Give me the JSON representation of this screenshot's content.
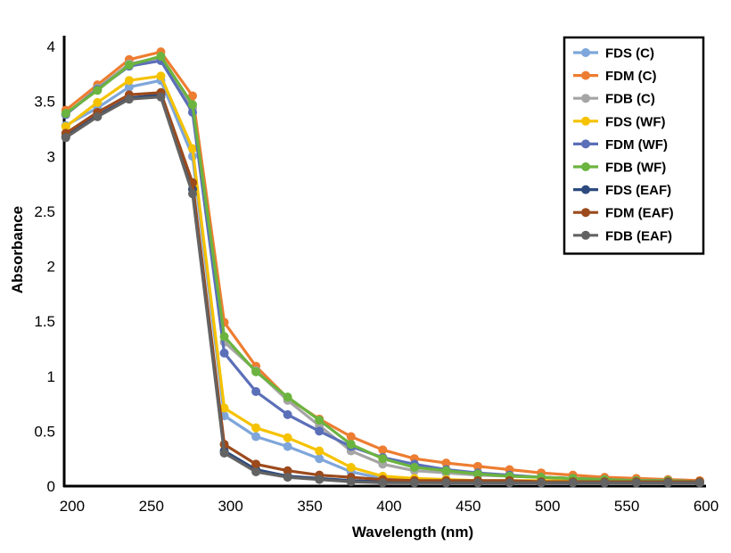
{
  "chart_data": {
    "type": "line",
    "title": "",
    "xlabel": "Wavelength (nm)",
    "ylabel": "Absorbance",
    "xlim": [
      195,
      600
    ],
    "ylim": [
      0,
      4
    ],
    "xticks": [
      200,
      250,
      300,
      350,
      400,
      450,
      500,
      550,
      600
    ],
    "yticks": [
      0,
      0.5,
      1,
      1.5,
      2,
      2.5,
      3,
      3.5,
      4
    ],
    "ytick_labels": [
      "0",
      "0.5",
      "1",
      "1.5",
      "2",
      "2.5",
      "3",
      "3.5",
      "4"
    ],
    "grid": false,
    "legend_position": "top-right",
    "x": [
      196,
      216,
      236,
      256,
      276,
      296,
      316,
      336,
      356,
      376,
      396,
      416,
      436,
      456,
      476,
      496,
      516,
      536,
      556,
      576,
      596
    ],
    "series": [
      {
        "name": "FDS (C)",
        "color": "#7ea6da",
        "values": [
          3.28,
          3.44,
          3.63,
          3.69,
          3.0,
          0.64,
          0.45,
          0.36,
          0.25,
          0.13,
          0.07,
          0.05,
          0.05,
          0.04,
          0.04,
          0.04,
          0.04,
          0.04,
          0.04,
          0.04,
          0.04
        ]
      },
      {
        "name": "FDM (C)",
        "color": "#ed7d31",
        "values": [
          3.42,
          3.65,
          3.88,
          3.95,
          3.55,
          1.49,
          1.09,
          0.8,
          0.61,
          0.45,
          0.33,
          0.25,
          0.21,
          0.18,
          0.15,
          0.12,
          0.1,
          0.08,
          0.07,
          0.06,
          0.05
        ]
      },
      {
        "name": "FDB (C)",
        "color": "#a5a5a5",
        "values": [
          3.38,
          3.62,
          3.84,
          3.9,
          3.44,
          1.31,
          1.05,
          0.78,
          0.55,
          0.32,
          0.2,
          0.14,
          0.12,
          0.1,
          0.09,
          0.08,
          0.07,
          0.06,
          0.05,
          0.05,
          0.04
        ]
      },
      {
        "name": "FDS (WF)",
        "color": "#f5c200",
        "values": [
          3.27,
          3.49,
          3.69,
          3.73,
          3.07,
          0.71,
          0.53,
          0.44,
          0.32,
          0.17,
          0.09,
          0.07,
          0.06,
          0.05,
          0.05,
          0.05,
          0.05,
          0.04,
          0.04,
          0.04,
          0.04
        ]
      },
      {
        "name": "FDM (WF)",
        "color": "#5b6fb8",
        "values": [
          3.38,
          3.61,
          3.82,
          3.87,
          3.4,
          1.21,
          0.86,
          0.65,
          0.5,
          0.36,
          0.26,
          0.2,
          0.15,
          0.12,
          0.1,
          0.08,
          0.07,
          0.06,
          0.05,
          0.05,
          0.04
        ]
      },
      {
        "name": "FDB (WF)",
        "color": "#6bb43f",
        "values": [
          3.39,
          3.6,
          3.83,
          3.91,
          3.47,
          1.36,
          1.04,
          0.81,
          0.6,
          0.38,
          0.25,
          0.17,
          0.14,
          0.11,
          0.09,
          0.08,
          0.07,
          0.06,
          0.05,
          0.05,
          0.04
        ]
      },
      {
        "name": "FDS (EAF)",
        "color": "#2c4a7e",
        "values": [
          3.18,
          3.37,
          3.53,
          3.56,
          2.7,
          0.32,
          0.15,
          0.09,
          0.07,
          0.05,
          0.04,
          0.04,
          0.03,
          0.03,
          0.03,
          0.03,
          0.03,
          0.03,
          0.03,
          0.03,
          0.03
        ]
      },
      {
        "name": "FDM (EAF)",
        "color": "#9c4a1c",
        "values": [
          3.21,
          3.4,
          3.56,
          3.58,
          2.76,
          0.38,
          0.2,
          0.14,
          0.1,
          0.08,
          0.06,
          0.05,
          0.05,
          0.05,
          0.05,
          0.04,
          0.04,
          0.04,
          0.04,
          0.04,
          0.04
        ]
      },
      {
        "name": "FDB (EAF)",
        "color": "#636363",
        "values": [
          3.17,
          3.36,
          3.52,
          3.54,
          2.66,
          0.3,
          0.13,
          0.08,
          0.06,
          0.04,
          0.03,
          0.03,
          0.03,
          0.03,
          0.03,
          0.03,
          0.03,
          0.03,
          0.03,
          0.03,
          0.03
        ]
      }
    ]
  }
}
